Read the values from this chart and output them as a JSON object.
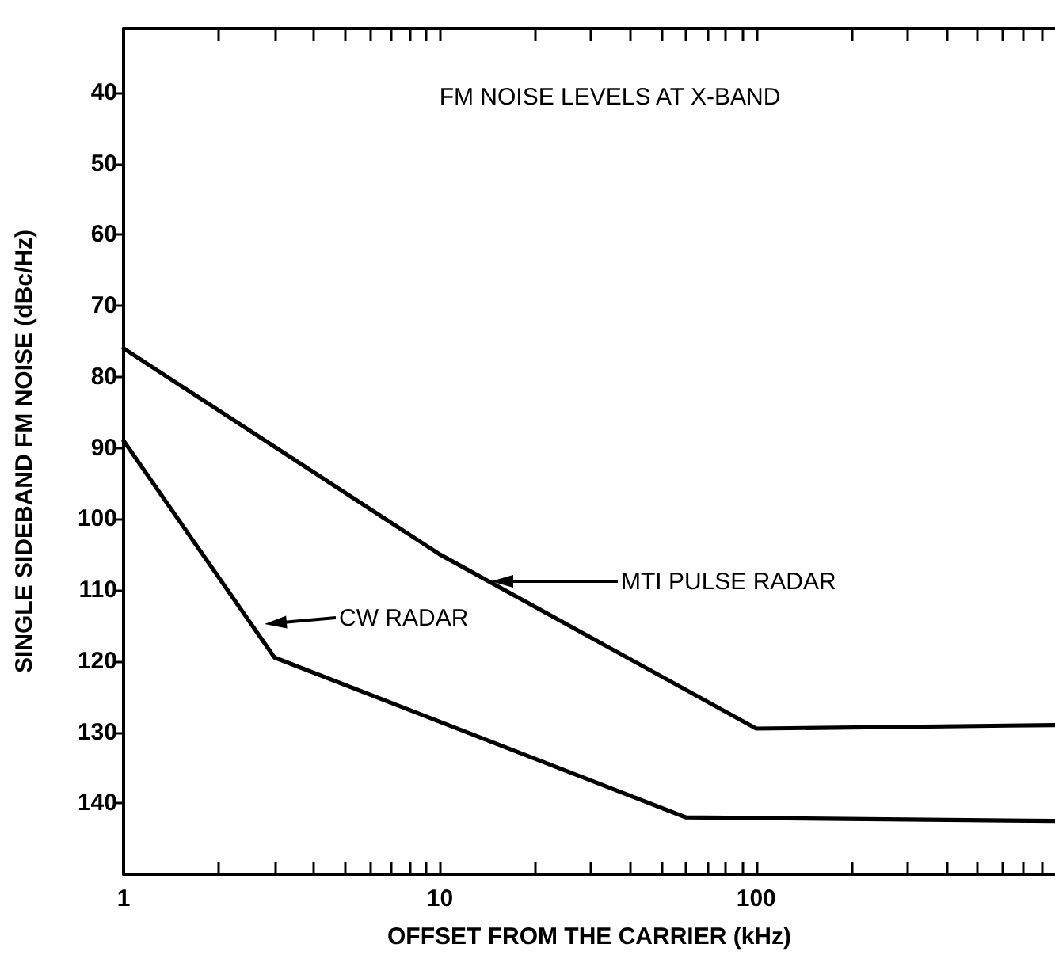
{
  "chart_data": {
    "type": "line",
    "title": "FM NOISE LEVELS AT X-BAND",
    "xlabel": "OFFSET FROM THE CARRIER (kHz)",
    "ylabel": "SINGLE SIDEBAND FM NOISE (dBc/Hz)",
    "log": "x",
    "xlim": [
      1,
      880
    ],
    "ylim": [
      150,
      31
    ],
    "xticks": [
      1,
      {
        "value": 2,
        "label": null
      },
      {
        "value": 3,
        "label": null
      },
      {
        "value": 4,
        "label": null
      },
      {
        "value": 5,
        "label": null
      },
      {
        "value": 6,
        "label": null
      },
      {
        "value": 7,
        "label": null
      },
      {
        "value": 8,
        "label": null
      },
      {
        "value": 9,
        "label": null
      },
      10,
      {
        "value": 20,
        "label": null
      },
      {
        "value": 30,
        "label": null
      },
      {
        "value": 40,
        "label": null
      },
      {
        "value": 50,
        "label": null
      },
      {
        "value": 60,
        "label": null
      },
      {
        "value": 70,
        "label": null
      },
      {
        "value": 80,
        "label": null
      },
      {
        "value": 90,
        "label": null
      },
      100,
      {
        "value": 200,
        "label": null
      },
      {
        "value": 300,
        "label": null
      },
      {
        "value": 400,
        "label": null
      },
      {
        "value": 500,
        "label": null
      },
      {
        "value": 600,
        "label": null
      },
      {
        "value": 700,
        "label": null
      },
      {
        "value": 800,
        "label": null
      }
    ],
    "yticks": [
      40,
      50,
      60,
      70,
      80,
      90,
      100,
      110,
      120,
      130,
      140
    ],
    "grid": false,
    "marker": "none",
    "line_style": "solid",
    "series": [
      {
        "color": "#000000",
        "x": [
          1,
          10,
          100,
          880
        ],
        "values": [
          76,
          105,
          129.5,
          129
        ]
      },
      {
        "color": "#000000",
        "x": [
          1,
          3,
          60,
          880
        ],
        "values": [
          89,
          119.5,
          142,
          142.5
        ]
      }
    ],
    "annotations": [
      "MTI PULSE RADAR",
      "CW RADAR"
    ]
  }
}
